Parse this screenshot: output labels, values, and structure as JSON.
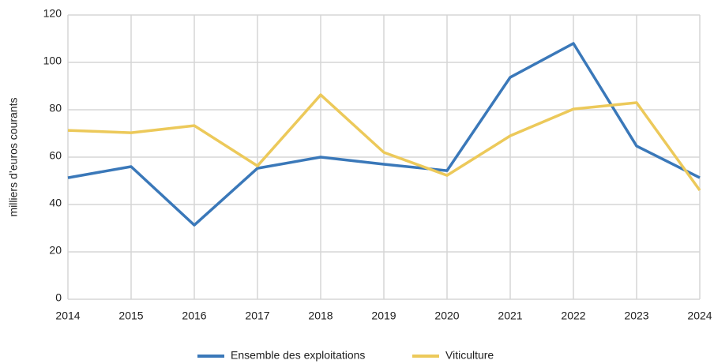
{
  "chart_data": {
    "type": "line",
    "y_label": "milliers d’euros courants",
    "x": [
      2014,
      2015,
      2016,
      2017,
      2018,
      2019,
      2020,
      2021,
      2022,
      2023,
      2024
    ],
    "series": [
      {
        "name": "Ensemble des exploitations",
        "color": "#3a78b9",
        "values": [
          51.3,
          56,
          31.3,
          55.3,
          60,
          57,
          54.3,
          93.7,
          108,
          64.7,
          51.3
        ]
      },
      {
        "name": "Viticulture",
        "color": "#ecc95a",
        "values": [
          71.3,
          70.3,
          73.3,
          56.3,
          86.3,
          62,
          52.3,
          69,
          80.3,
          83,
          46
        ]
      }
    ],
    "xlim": [
      2014,
      2024
    ],
    "xticks": [
      2014,
      2015,
      2016,
      2017,
      2018,
      2019,
      2020,
      2021,
      2022,
      2023,
      2024
    ],
    "ylim": [
      0,
      120
    ],
    "yticks": [
      0,
      20,
      40,
      60,
      80,
      100,
      120
    ],
    "grid": true,
    "legend": "bottom"
  }
}
